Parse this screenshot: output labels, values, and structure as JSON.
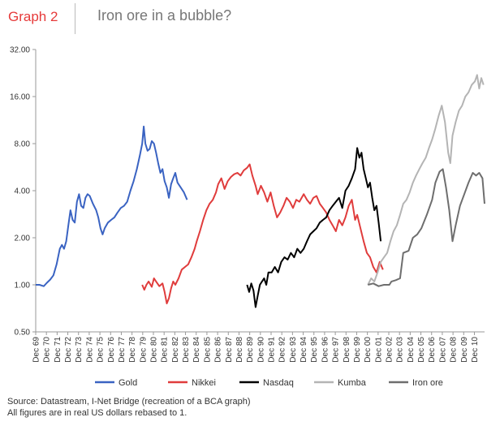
{
  "header": {
    "graph_label": "Graph 2",
    "title": "Iron ore in a bubble?"
  },
  "footer": {
    "source": "Source: Datastream, I-Net Bridge (recreation of a BCA graph)",
    "note": "All figures are in real US dollars rebased to 1."
  },
  "chart_data": {
    "type": "line",
    "title": "Iron ore in a bubble?",
    "xlabel": "",
    "ylabel": "",
    "y_scale": "log2",
    "ylim": [
      0.5,
      32
    ],
    "xlim": [
      1969.95,
      2011.9
    ],
    "y_ticks": [
      "0.50",
      "1.00",
      "2.00",
      "4.00",
      "8.00",
      "16.00",
      "32.00"
    ],
    "y_tick_values": [
      0.5,
      1,
      2,
      4,
      8,
      16,
      32
    ],
    "x_tick_labels": [
      "Dec 69",
      "Dec 70",
      "Dec 71",
      "Dec 72",
      "Dec 73",
      "Dec 74",
      "Dec 75",
      "Dec 76",
      "Dec 77",
      "Dec 78",
      "Dec 79",
      "Dec 80",
      "Dec 81",
      "Dec 82",
      "Dec 83",
      "Dec 84",
      "Dec 85",
      "Dec 86",
      "Dec 87",
      "Dec 88",
      "Dec 89",
      "Dec 90",
      "Dec 91",
      "Dec 92",
      "Dec 93",
      "Dec 94",
      "Dec 95",
      "Dec 96",
      "Dec 97",
      "Dec 98",
      "Dec 99",
      "Dec 00",
      "Dec 01",
      "Dec 02",
      "Dec 03",
      "Dec 04",
      "Dec 05",
      "Dec 06",
      "Dec 07",
      "Dec 08",
      "Dec 09",
      "Dec 10"
    ],
    "grid": false,
    "legend_position": "bottom",
    "series": [
      {
        "name": "Gold",
        "color": "#3a63c2",
        "x": [
          1969.95,
          1970.3,
          1970.7,
          1971.0,
          1971.3,
          1971.6,
          1971.9,
          1972.2,
          1972.4,
          1972.6,
          1972.8,
          1973.0,
          1973.2,
          1973.4,
          1973.6,
          1973.8,
          1974.0,
          1974.2,
          1974.4,
          1974.6,
          1974.8,
          1975.0,
          1975.3,
          1975.6,
          1975.8,
          1976.0,
          1976.2,
          1976.4,
          1976.7,
          1977.0,
          1977.3,
          1977.6,
          1977.9,
          1978.2,
          1978.5,
          1978.8,
          1979.1,
          1979.4,
          1979.7,
          1979.9,
          1980.05,
          1980.2,
          1980.4,
          1980.6,
          1980.8,
          1981.0,
          1981.2,
          1981.4,
          1981.6,
          1981.8,
          1982.0,
          1982.2,
          1982.4,
          1982.6,
          1982.8,
          1983.0,
          1983.2,
          1983.5,
          1983.8,
          1984.1
        ],
        "y": [
          1.0,
          1.0,
          0.98,
          1.03,
          1.08,
          1.15,
          1.35,
          1.7,
          1.8,
          1.7,
          1.9,
          2.4,
          3.0,
          2.6,
          2.5,
          3.4,
          3.8,
          3.2,
          3.1,
          3.6,
          3.8,
          3.7,
          3.3,
          3.0,
          2.7,
          2.3,
          2.1,
          2.3,
          2.5,
          2.6,
          2.7,
          2.9,
          3.1,
          3.2,
          3.4,
          4.0,
          4.6,
          5.5,
          6.8,
          8.0,
          10.3,
          8.0,
          7.2,
          7.4,
          8.3,
          8.0,
          7.0,
          6.0,
          5.2,
          5.5,
          4.6,
          4.2,
          3.6,
          4.4,
          4.8,
          5.2,
          4.5,
          4.2,
          3.9,
          3.5
        ]
      },
      {
        "name": "Nikkei",
        "color": "#e03c3c",
        "x": [
          1979.9,
          1980.1,
          1980.3,
          1980.5,
          1980.8,
          1981.0,
          1981.2,
          1981.5,
          1981.8,
          1982.0,
          1982.2,
          1982.4,
          1982.6,
          1982.8,
          1983.0,
          1983.3,
          1983.6,
          1983.9,
          1984.2,
          1984.5,
          1984.8,
          1985.0,
          1985.3,
          1985.6,
          1985.9,
          1986.2,
          1986.5,
          1986.8,
          1987.0,
          1987.3,
          1987.6,
          1987.9,
          1988.2,
          1988.5,
          1988.8,
          1989.1,
          1989.4,
          1989.7,
          1989.95,
          1990.2,
          1990.5,
          1990.7,
          1991.0,
          1991.3,
          1991.6,
          1991.9,
          1992.2,
          1992.5,
          1992.8,
          1993.1,
          1993.4,
          1993.7,
          1994.0,
          1994.3,
          1994.6,
          1995.0,
          1995.3,
          1995.6,
          1995.9,
          1996.2,
          1996.5,
          1996.8,
          1997.1,
          1997.4,
          1997.7,
          1998.0,
          1998.3,
          1998.6,
          1998.9,
          1999.2,
          1999.5,
          1999.8,
          2000.0,
          2000.3,
          2000.6,
          2000.9,
          2001.2,
          2001.5,
          2001.8,
          2002.1,
          2002.4
        ],
        "y": [
          1.0,
          0.93,
          1.0,
          1.05,
          0.97,
          1.1,
          1.05,
          0.98,
          1.02,
          0.9,
          0.76,
          0.82,
          0.95,
          1.05,
          1.0,
          1.1,
          1.25,
          1.3,
          1.35,
          1.5,
          1.7,
          1.9,
          2.2,
          2.6,
          3.0,
          3.3,
          3.5,
          3.9,
          4.4,
          4.8,
          4.1,
          4.6,
          4.9,
          5.1,
          5.2,
          5.0,
          5.4,
          5.6,
          5.9,
          5.0,
          4.3,
          3.8,
          4.3,
          3.9,
          3.4,
          3.9,
          3.2,
          2.7,
          2.9,
          3.2,
          3.6,
          3.4,
          3.1,
          3.5,
          3.4,
          3.8,
          3.5,
          3.3,
          3.6,
          3.7,
          3.3,
          3.1,
          2.9,
          2.6,
          2.4,
          2.2,
          2.6,
          2.4,
          2.7,
          3.2,
          3.5,
          2.6,
          2.8,
          2.3,
          1.9,
          1.6,
          1.5,
          1.3,
          1.2,
          1.4,
          1.25
        ]
      },
      {
        "name": "Nasdaq",
        "color": "#000000",
        "x": [
          1989.7,
          1989.9,
          1990.1,
          1990.3,
          1990.5,
          1990.7,
          1990.9,
          1991.1,
          1991.3,
          1991.5,
          1991.7,
          1992.0,
          1992.3,
          1992.6,
          1992.9,
          1993.2,
          1993.5,
          1993.8,
          1994.1,
          1994.4,
          1994.7,
          1995.0,
          1995.3,
          1995.6,
          1995.9,
          1996.2,
          1996.5,
          1996.8,
          1997.1,
          1997.4,
          1997.7,
          1998.0,
          1998.3,
          1998.6,
          1998.9,
          1999.2,
          1999.5,
          1999.8,
          2000.0,
          2000.2,
          2000.4,
          2000.6,
          2000.8,
          2001.0,
          2001.2,
          2001.4,
          2001.6,
          2001.8,
          2002.0,
          2002.2
        ],
        "y": [
          1.0,
          0.9,
          1.02,
          0.92,
          0.72,
          0.85,
          1.0,
          1.05,
          1.1,
          1.0,
          1.2,
          1.2,
          1.3,
          1.2,
          1.4,
          1.5,
          1.45,
          1.6,
          1.5,
          1.7,
          1.6,
          1.7,
          1.9,
          2.1,
          2.2,
          2.3,
          2.5,
          2.6,
          2.7,
          3.0,
          3.2,
          3.4,
          3.6,
          3.1,
          4.0,
          4.3,
          4.8,
          5.5,
          7.5,
          6.5,
          7.0,
          5.5,
          4.8,
          4.2,
          4.5,
          3.6,
          3.0,
          3.2,
          2.5,
          1.9
        ]
      },
      {
        "name": "Kumba",
        "color": "#b4b4b4",
        "x": [
          2001.0,
          2001.3,
          2001.6,
          2001.9,
          2002.2,
          2002.5,
          2002.8,
          2003.1,
          2003.4,
          2003.7,
          2004.0,
          2004.3,
          2004.6,
          2004.9,
          2005.2,
          2005.5,
          2005.8,
          2006.1,
          2006.4,
          2006.7,
          2007.0,
          2007.3,
          2007.6,
          2007.9,
          2008.2,
          2008.5,
          2008.7,
          2008.9,
          2009.2,
          2009.5,
          2009.8,
          2010.1,
          2010.4,
          2010.7,
          2011.0,
          2011.2,
          2011.4,
          2011.6,
          2011.8
        ],
        "y": [
          1.0,
          1.1,
          1.05,
          1.2,
          1.4,
          1.5,
          1.6,
          1.9,
          2.2,
          2.4,
          2.8,
          3.3,
          3.5,
          3.9,
          4.5,
          5.0,
          5.5,
          6.0,
          6.5,
          7.5,
          8.5,
          10.0,
          12.0,
          14.0,
          11.0,
          7.0,
          6.0,
          9.0,
          11.0,
          13.0,
          14.0,
          16.0,
          17.0,
          19.0,
          20.0,
          22.0,
          18.0,
          21.0,
          19.0
        ]
      },
      {
        "name": "Iron ore",
        "color": "#6e6e6e",
        "x": [
          2001.0,
          2001.5,
          2002.0,
          2002.5,
          2003.0,
          2003.2,
          2003.6,
          2004.0,
          2004.3,
          2004.8,
          2005.2,
          2005.6,
          2006.0,
          2006.5,
          2007.0,
          2007.3,
          2007.7,
          2008.0,
          2008.3,
          2008.6,
          2008.9,
          2009.2,
          2009.6,
          2010.0,
          2010.4,
          2010.8,
          2011.1,
          2011.4,
          2011.7,
          2011.9
        ],
        "y": [
          1.0,
          1.02,
          0.98,
          1.0,
          1.0,
          1.05,
          1.07,
          1.1,
          1.6,
          1.65,
          2.0,
          2.1,
          2.3,
          2.8,
          3.5,
          4.5,
          5.3,
          5.5,
          4.2,
          3.0,
          1.9,
          2.4,
          3.2,
          3.8,
          4.5,
          5.2,
          5.0,
          5.2,
          4.8,
          3.3
        ]
      }
    ]
  }
}
